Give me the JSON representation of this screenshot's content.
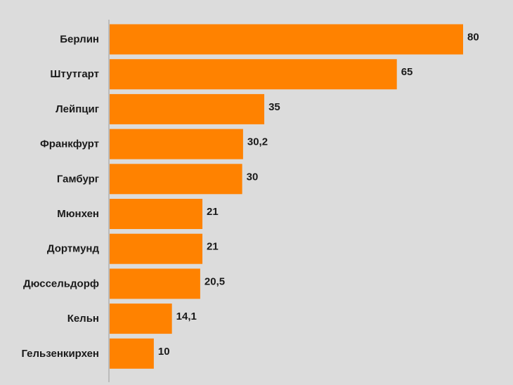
{
  "chart_data": {
    "type": "bar",
    "orientation": "horizontal",
    "title": "",
    "xlabel": "",
    "ylabel": "",
    "categories": [
      "Берлин",
      "Штутгарт",
      "Лейпциг",
      "Франкфурт",
      "Гамбург",
      "Мюнхен",
      "Дортмунд",
      "Дюссельдорф",
      "Кельн",
      "Гельзенкирхен"
    ],
    "values": [
      80,
      65,
      35,
      30.2,
      30,
      21,
      21,
      20.5,
      14.1,
      10
    ],
    "value_labels": [
      "80",
      "65",
      "35",
      "30,2",
      "30",
      "21",
      "21",
      "20,5",
      "14,1",
      "10"
    ],
    "xlim": [
      0,
      80
    ],
    "grid": false,
    "legend": "none",
    "bar_color": "#ff8200",
    "background_color": "#dcdcdc",
    "axis_color": "#9a9a9a"
  }
}
